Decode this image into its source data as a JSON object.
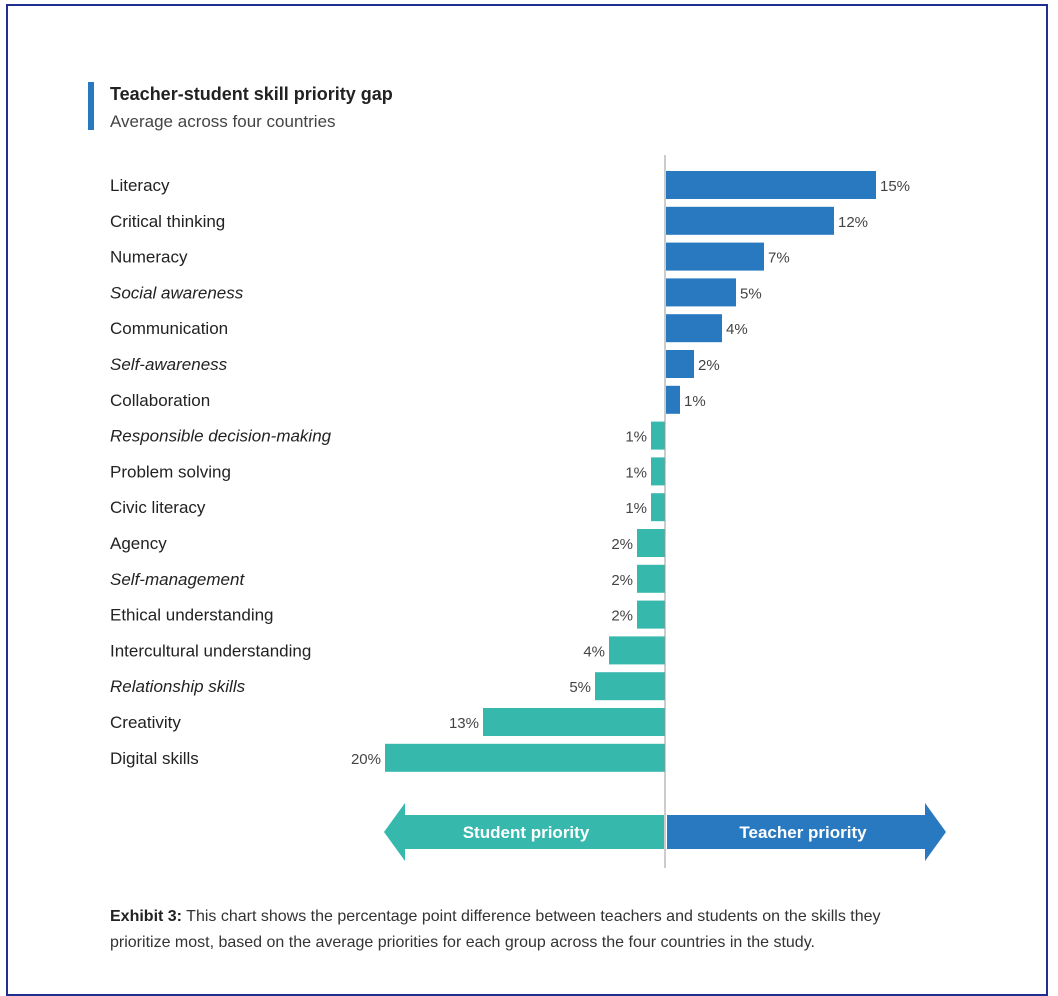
{
  "chart_data": {
    "type": "bar",
    "orientation": "horizontal-diverging",
    "title": "Teacher-student skill priority gap",
    "subtitle": "Average across four countries",
    "categories": [
      "Literacy",
      "Critical thinking",
      "Numeracy",
      "Social awareness",
      "Communication",
      "Self-awareness",
      "Collaboration",
      "Responsible decision-making",
      "Problem solving",
      "Civic literacy",
      "Agency",
      "Self-management",
      "Ethical understanding",
      "Intercultural understanding",
      "Relationship skills",
      "Creativity",
      "Digital skills"
    ],
    "italic": [
      false,
      false,
      false,
      true,
      false,
      true,
      false,
      true,
      false,
      false,
      false,
      true,
      false,
      false,
      true,
      false,
      false
    ],
    "values": [
      15,
      12,
      7,
      5,
      4,
      2,
      1,
      -1,
      -1,
      -1,
      -2,
      -2,
      -2,
      -4,
      -5,
      -13,
      -20
    ],
    "value_labels": [
      "15%",
      "12%",
      "7%",
      "5%",
      "4%",
      "2%",
      "1%",
      "1%",
      "1%",
      "1%",
      "2%",
      "2%",
      "2%",
      "4%",
      "5%",
      "13%",
      "20%"
    ],
    "colors": {
      "teacher": "#2979c0",
      "student": "#36b8ad"
    },
    "direction_labels": {
      "student": "Student priority",
      "teacher": "Teacher priority"
    }
  },
  "caption": {
    "lead": "Exhibit 3:",
    "text": " This chart shows the percentage point difference between teachers and students on the skills they prioritize most, based on the average priorities for each group across the four countries in the study."
  }
}
